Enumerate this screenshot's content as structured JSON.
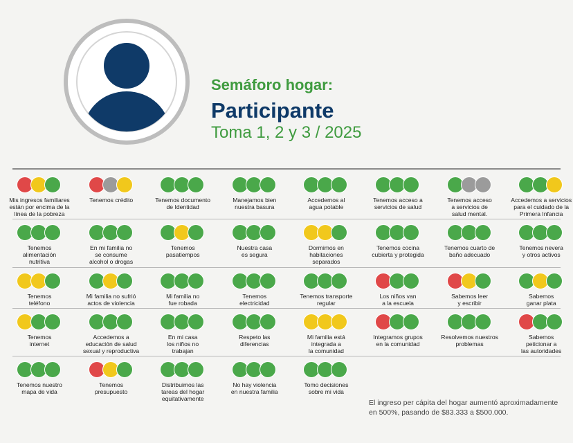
{
  "header": {
    "title": "Semáforo hogar:",
    "subtitle": "Participante",
    "period": "Toma 1, 2 y 3 / 2025"
  },
  "status_colors": {
    "red": "#e04848",
    "yellow": "#f1c81c",
    "green": "#4aa84a",
    "gray": "#9b9b9b"
  },
  "columns": 8,
  "indicators": [
    {
      "status": [
        "red",
        "yellow",
        "green"
      ],
      "label": [
        "Mis ingresos familiares",
        "están por encima de la",
        "línea de la pobreza"
      ]
    },
    {
      "status": [
        "red",
        "gray",
        "yellow"
      ],
      "label": [
        "Tenemos crédito"
      ]
    },
    {
      "status": [
        "green",
        "green",
        "green"
      ],
      "label": [
        "Tenemos documento",
        "de Identidad"
      ]
    },
    {
      "status": [
        "green",
        "green",
        "green"
      ],
      "label": [
        "Manejamos bien",
        "nuestra basura"
      ]
    },
    {
      "status": [
        "green",
        "green",
        "green"
      ],
      "label": [
        "Accedemos al",
        "agua potable"
      ]
    },
    {
      "status": [
        "green",
        "green",
        "green"
      ],
      "label": [
        "Tenemos acceso a",
        "servicios de salud"
      ]
    },
    {
      "status": [
        "green",
        "gray",
        "gray"
      ],
      "label": [
        "Tenemos acceso",
        "a servicios de",
        "salud mental."
      ]
    },
    {
      "status": [
        "green",
        "green",
        "yellow"
      ],
      "label": [
        "Accedemos a servicios",
        "para el cuidado de la",
        "Primera Infancia"
      ]
    },
    {
      "status": [
        "green",
        "green",
        "green"
      ],
      "label": [
        "Tenemos",
        "alimentación",
        "nutritiva"
      ]
    },
    {
      "status": [
        "green",
        "green",
        "green"
      ],
      "label": [
        "En mi familia no",
        "se consume",
        "alcohol o drogas"
      ]
    },
    {
      "status": [
        "green",
        "yellow",
        "green"
      ],
      "label": [
        "Tenemos",
        "pasatiempos"
      ]
    },
    {
      "status": [
        "green",
        "green",
        "green"
      ],
      "label": [
        "Nuestra casa",
        "es segura"
      ]
    },
    {
      "status": [
        "yellow",
        "yellow",
        "green"
      ],
      "label": [
        "Dormimos en",
        "habitaciones",
        "separados"
      ]
    },
    {
      "status": [
        "green",
        "green",
        "green"
      ],
      "label": [
        "Tenemos cocina",
        "cubierta y protegida"
      ]
    },
    {
      "status": [
        "green",
        "green",
        "green"
      ],
      "label": [
        "Tenemos cuarto de",
        "baño adecuado"
      ]
    },
    {
      "status": [
        "green",
        "green",
        "green"
      ],
      "label": [
        "Tenemos nevera",
        "y otros activos"
      ]
    },
    {
      "status": [
        "yellow",
        "yellow",
        "green"
      ],
      "label": [
        "Tenemos",
        "teléfono"
      ]
    },
    {
      "status": [
        "green",
        "yellow",
        "green"
      ],
      "label": [
        "Mi familia no sufrió",
        "actos de violencia"
      ]
    },
    {
      "status": [
        "green",
        "green",
        "green"
      ],
      "label": [
        "Mi familia no",
        "fue robada"
      ]
    },
    {
      "status": [
        "green",
        "green",
        "green"
      ],
      "label": [
        "Tenemos",
        "electricidad"
      ]
    },
    {
      "status": [
        "green",
        "green",
        "green"
      ],
      "label": [
        "Tenemos transporte",
        "regular"
      ]
    },
    {
      "status": [
        "red",
        "green",
        "green"
      ],
      "label": [
        "Los niños van",
        "a la escuela"
      ]
    },
    {
      "status": [
        "red",
        "yellow",
        "green"
      ],
      "label": [
        "Sabemos leer",
        "y escribir"
      ]
    },
    {
      "status": [
        "green",
        "yellow",
        "green"
      ],
      "label": [
        "Sabemos",
        "ganar plata"
      ]
    },
    {
      "status": [
        "yellow",
        "green",
        "green"
      ],
      "label": [
        "Tenemos",
        "internet"
      ]
    },
    {
      "status": [
        "green",
        "green",
        "green"
      ],
      "label": [
        "Accedemos a",
        "educación de salud",
        "sexual y reproductiva"
      ]
    },
    {
      "status": [
        "green",
        "green",
        "green"
      ],
      "label": [
        "En mi casa",
        "los niños no",
        "trabajan"
      ]
    },
    {
      "status": [
        "green",
        "green",
        "green"
      ],
      "label": [
        "Respeto las",
        "diferencias"
      ]
    },
    {
      "status": [
        "yellow",
        "yellow",
        "yellow"
      ],
      "label": [
        "Mi familia está",
        "integrada a",
        "la comunidad"
      ]
    },
    {
      "status": [
        "red",
        "green",
        "green"
      ],
      "label": [
        "Integramos grupos",
        "en la comunidad"
      ]
    },
    {
      "status": [
        "green",
        "green",
        "green"
      ],
      "label": [
        "Resolvemos nuestros",
        "problemas"
      ]
    },
    {
      "status": [
        "red",
        "green",
        "green"
      ],
      "label": [
        "Sabemos",
        "peticionar a",
        "las autoridades"
      ]
    },
    {
      "status": [
        "green",
        "green",
        "green"
      ],
      "label": [
        "Tenemos nuestro",
        "mapa de vida"
      ]
    },
    {
      "status": [
        "red",
        "yellow",
        "green"
      ],
      "label": [
        "Tenemos",
        "presupuesto"
      ]
    },
    {
      "status": [
        "green",
        "green",
        "green"
      ],
      "label": [
        "Distribuimos las",
        "tareas del hogar",
        "equitativamente"
      ]
    },
    {
      "status": [
        "green",
        "green",
        "green"
      ],
      "label": [
        "No hay violencia",
        "en nuestra familia"
      ]
    },
    {
      "status": [
        "green",
        "green",
        "green"
      ],
      "label": [
        "Tomo decisiones",
        "sobre mi vida"
      ]
    }
  ],
  "note": [
    "El ingreso per cápita del hogar aumentó aproximadamente",
    "en 500%, pasando de $83.333 a $500.000."
  ]
}
